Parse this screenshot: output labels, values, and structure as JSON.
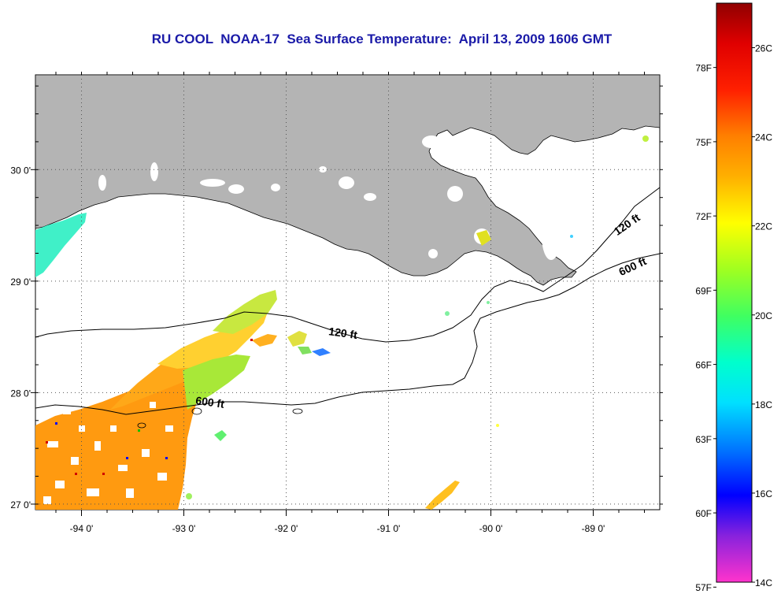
{
  "title": "RU COOL  NOAA-17  Sea Surface Temperature:  April 13, 2009 1606 GMT",
  "map": {
    "lon_ticks": [
      {
        "value": -94,
        "label": "-94 0'"
      },
      {
        "value": -93,
        "label": "-93 0'"
      },
      {
        "value": -92,
        "label": "-92 0'"
      },
      {
        "value": -91,
        "label": "-91 0'"
      },
      {
        "value": -90,
        "label": "-90 0'"
      },
      {
        "value": -89,
        "label": "-89 0'"
      }
    ],
    "lat_ticks": [
      {
        "value": 30,
        "label": "30 0'"
      },
      {
        "value": 29,
        "label": "29 0'"
      },
      {
        "value": 28,
        "label": "28 0'"
      },
      {
        "value": 27,
        "label": "27 0'"
      }
    ],
    "lon_range": [
      -94.45,
      -88.35
    ],
    "lat_range": [
      26.95,
      30.85
    ],
    "land_color": "#b4b4b4",
    "contours": [
      {
        "label": "120 ft",
        "label_lon": -91.45,
        "label_lat": 28.5
      },
      {
        "label": "600 ft",
        "label_lon": -92.75,
        "label_lat": 27.88
      },
      {
        "label": "120 ft",
        "label_lon": -88.65,
        "label_lat": 29.48
      },
      {
        "label": "600 ft",
        "label_lon": -88.6,
        "label_lat": 29.1
      }
    ]
  },
  "colorbar": {
    "min_c": 14,
    "max_c": 27,
    "f_labels": [
      "78F",
      "75F",
      "72F",
      "69F",
      "66F",
      "63F",
      "60F",
      "57F"
    ],
    "c_labels": [
      "26C",
      "24C",
      "22C",
      "20C",
      "18C",
      "16C",
      "14C"
    ]
  }
}
